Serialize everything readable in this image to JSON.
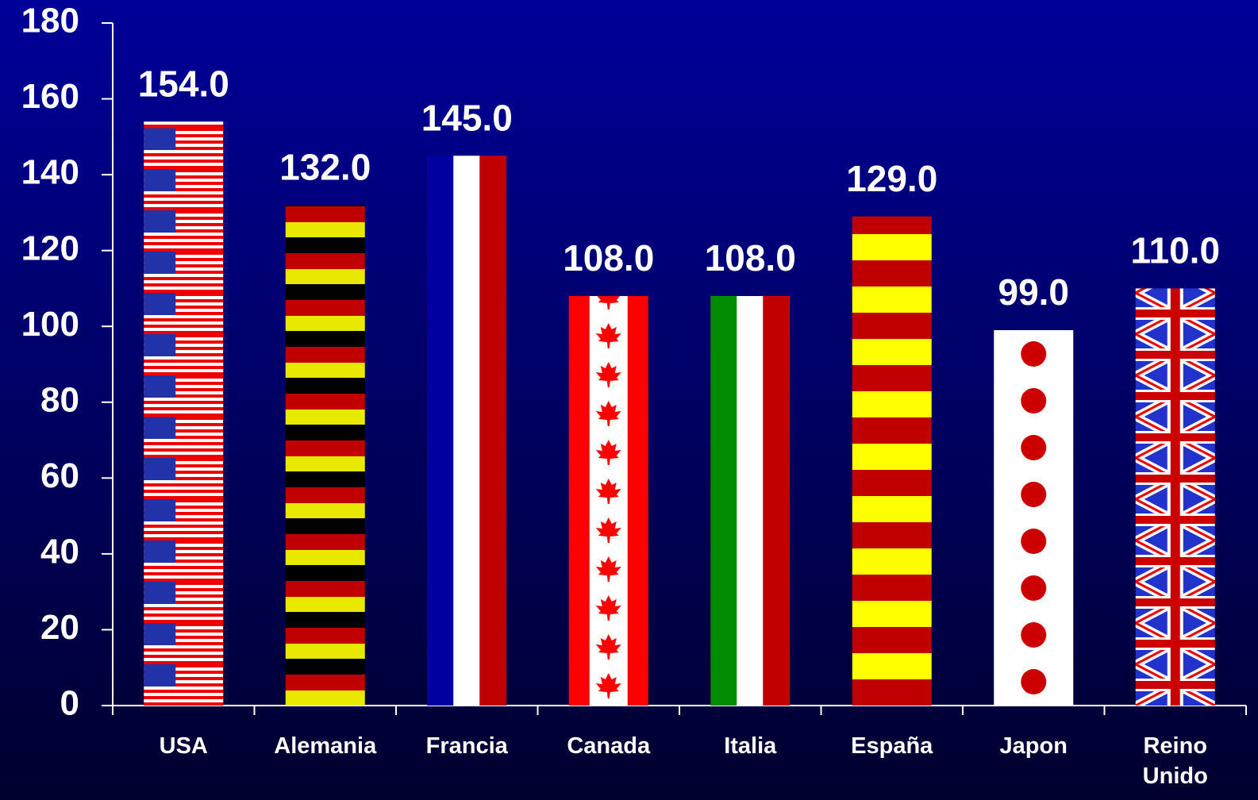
{
  "chart_data": {
    "type": "bar",
    "categories": [
      "USA",
      "Alemania",
      "Francia",
      "Canada",
      "Italia",
      "España",
      "Japon",
      "Reino Unido"
    ],
    "values": [
      154,
      132,
      145,
      108,
      108,
      129,
      99,
      110
    ],
    "value_labels": [
      "154.0",
      "132.0",
      "145.0",
      "108.0",
      "108.0",
      "129.0",
      "99.0",
      "110.0"
    ],
    "ylim": [
      0,
      180
    ],
    "yticks": [
      0,
      20,
      40,
      60,
      80,
      100,
      120,
      140,
      160,
      180
    ],
    "grid": false
  }
}
